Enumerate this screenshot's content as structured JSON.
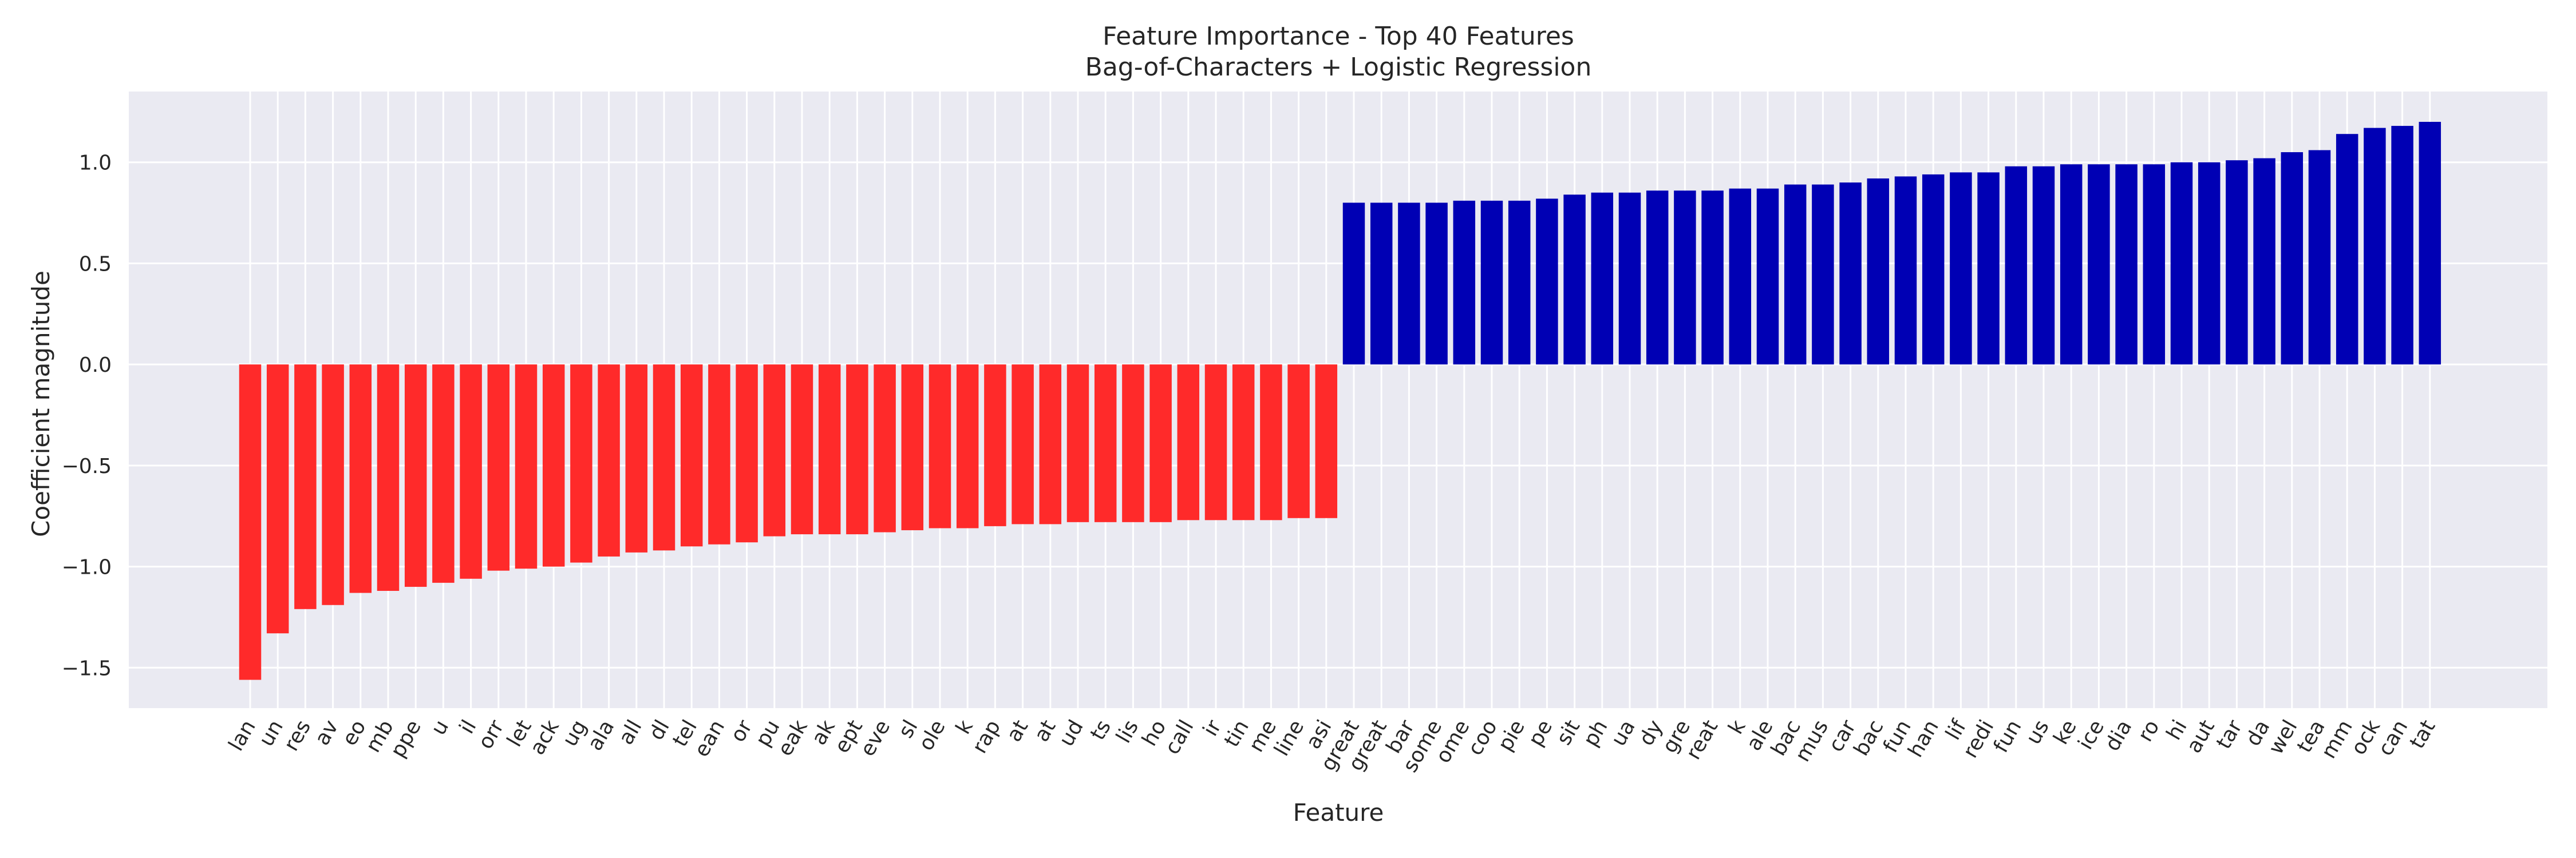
{
  "chart_data": {
    "type": "bar",
    "title": "Feature Importance - Top 40 Features",
    "subtitle": "Bag-of-Characters + Logistic Regression",
    "xlabel": "Feature",
    "ylabel": "Coefficient magnitude",
    "ylim": [
      -1.7,
      1.35
    ],
    "yticks": [
      -1.5,
      -1.0,
      -0.5,
      0.0,
      0.5,
      1.0
    ],
    "ytick_labels": [
      "−1.5",
      "−1.0",
      "−0.5",
      "0.0",
      "0.5",
      "1.0"
    ],
    "grid": true,
    "colors": {
      "negative": "#ff2a2a",
      "positive": "#0000b4",
      "plot_bg": "#eaeaf2",
      "grid": "#ffffff"
    },
    "categories": [
      "lan",
      "un",
      "res",
      "av",
      "eo",
      "mb",
      "ppe",
      "u",
      "il",
      "orr",
      "let",
      "ack",
      "ug",
      "ala",
      "all",
      "dl",
      "tel",
      "ean",
      "or",
      "pu",
      "eak",
      "ak",
      "ept",
      "eve",
      "sl",
      "ole",
      "k",
      "rap",
      "at",
      "at",
      "ud",
      "ts",
      "lis",
      "ho",
      "call",
      "ir",
      "tin",
      "me",
      "line",
      "asi",
      "great",
      "great",
      "bar",
      "some",
      "ome",
      "coo",
      "pie",
      "pe",
      "sit",
      "ph",
      "ua",
      "dy",
      "gre",
      "reat",
      "k",
      "ale",
      "bac",
      "mus",
      "car",
      "bac",
      "fun",
      "han",
      "lif",
      "redi",
      "fun",
      "us",
      "ke",
      "ice",
      "dia",
      "ro",
      "hi",
      "aut",
      "tar",
      "da",
      "wel",
      "tea",
      "mm",
      "ock",
      "can",
      "tat"
    ],
    "values": [
      -1.56,
      -1.33,
      -1.21,
      -1.19,
      -1.13,
      -1.12,
      -1.1,
      -1.08,
      -1.06,
      -1.02,
      -1.01,
      -1.0,
      -0.98,
      -0.95,
      -0.93,
      -0.92,
      -0.9,
      -0.89,
      -0.88,
      -0.85,
      -0.84,
      -0.84,
      -0.84,
      -0.83,
      -0.82,
      -0.81,
      -0.81,
      -0.8,
      -0.79,
      -0.79,
      -0.78,
      -0.78,
      -0.78,
      -0.78,
      -0.77,
      -0.77,
      -0.77,
      -0.77,
      -0.76,
      -0.76,
      0.8,
      0.8,
      0.8,
      0.8,
      0.81,
      0.81,
      0.81,
      0.82,
      0.84,
      0.85,
      0.85,
      0.86,
      0.86,
      0.86,
      0.87,
      0.87,
      0.89,
      0.89,
      0.9,
      0.92,
      0.93,
      0.94,
      0.95,
      0.95,
      0.98,
      0.98,
      0.99,
      0.99,
      0.99,
      0.99,
      1.0,
      1.0,
      1.01,
      1.02,
      1.05,
      1.06,
      1.14,
      1.17,
      1.18,
      1.2
    ]
  }
}
